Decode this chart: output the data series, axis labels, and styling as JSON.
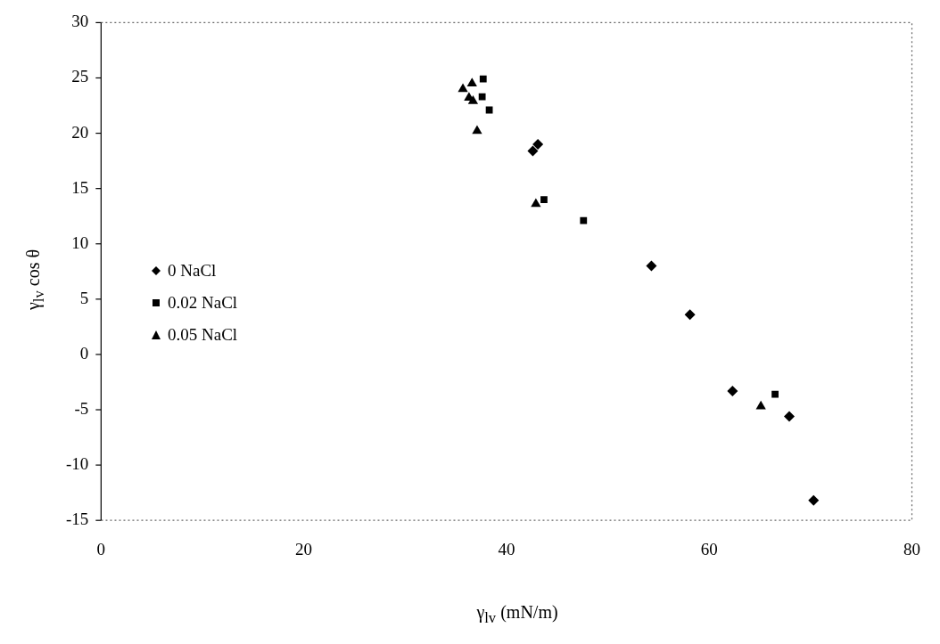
{
  "chart_data": {
    "type": "scatter",
    "xlabel": "γ$_{lv}$ (mN/m)",
    "ylabel": "γ$_{lv}$ cos θ",
    "xlim": [
      0,
      80
    ],
    "xticks": [
      0,
      20,
      40,
      60,
      80
    ],
    "ylim": [
      -15,
      30
    ],
    "yticks": [
      -15,
      -10,
      -5,
      0,
      5,
      10,
      15,
      20,
      25,
      30
    ],
    "grid": false,
    "legend": "left",
    "series": [
      {
        "name": "0 NaCl",
        "color": "#000000",
        "marker": "diamond",
        "x": [
          42.6,
          43.1,
          54.3,
          58.1,
          62.3,
          67.9,
          70.3
        ],
        "values": [
          18.4,
          19.0,
          8.0,
          3.6,
          -3.3,
          -5.6,
          -13.2
        ]
      },
      {
        "name": "0.02 NaCl",
        "color": "#000000",
        "marker": "square",
        "x": [
          37.7,
          37.6,
          38.3,
          43.7,
          47.6,
          66.5
        ],
        "values": [
          24.9,
          23.3,
          22.1,
          14.0,
          12.1,
          -3.6
        ]
      },
      {
        "name": "0.05 NaCl",
        "color": "#000000",
        "marker": "triangle",
        "x": [
          35.7,
          36.6,
          36.3,
          36.7,
          37.1,
          42.9,
          65.1
        ],
        "values": [
          24.0,
          24.5,
          23.2,
          22.9,
          20.2,
          13.6,
          -4.7
        ]
      }
    ]
  }
}
